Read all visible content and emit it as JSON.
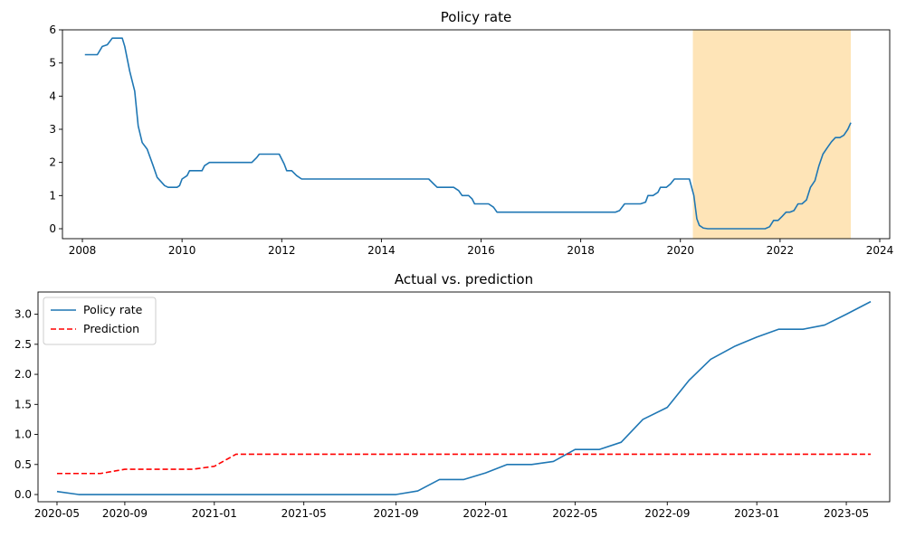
{
  "chart_data": [
    {
      "type": "line",
      "title": "Policy rate",
      "xlabel": "",
      "ylabel": "",
      "x_ticks": [
        "2008",
        "2010",
        "2012",
        "2014",
        "2016",
        "2018",
        "2020",
        "2022",
        "2024"
      ],
      "y_ticks": [
        "0",
        "1",
        "2",
        "3",
        "4",
        "5",
        "6"
      ],
      "xlim": [
        2007.6,
        2024.2
      ],
      "ylim": [
        -0.3,
        6.0
      ],
      "grid": false,
      "shaded_region": {
        "start": 2020.25,
        "end": 2023.42,
        "color": "#fdd48a",
        "opacity": 0.62
      },
      "series": [
        {
          "name": "",
          "color": "#1f77b4",
          "style": "solid",
          "points": [
            [
              2008.05,
              5.25
            ],
            [
              2008.3,
              5.25
            ],
            [
              2008.4,
              5.5
            ],
            [
              2008.5,
              5.55
            ],
            [
              2008.6,
              5.75
            ],
            [
              2008.8,
              5.75
            ],
            [
              2008.85,
              5.5
            ],
            [
              2008.95,
              4.75
            ],
            [
              2009.05,
              4.15
            ],
            [
              2009.12,
              3.1
            ],
            [
              2009.2,
              2.6
            ],
            [
              2009.3,
              2.4
            ],
            [
              2009.42,
              1.9
            ],
            [
              2009.5,
              1.55
            ],
            [
              2009.65,
              1.3
            ],
            [
              2009.72,
              1.25
            ],
            [
              2009.9,
              1.25
            ],
            [
              2009.95,
              1.3
            ],
            [
              2010.0,
              1.5
            ],
            [
              2010.1,
              1.6
            ],
            [
              2010.15,
              1.75
            ],
            [
              2010.4,
              1.75
            ],
            [
              2010.45,
              1.9
            ],
            [
              2010.55,
              2.0
            ],
            [
              2011.4,
              2.0
            ],
            [
              2011.5,
              2.15
            ],
            [
              2011.55,
              2.25
            ],
            [
              2011.95,
              2.25
            ],
            [
              2012.05,
              1.95
            ],
            [
              2012.1,
              1.75
            ],
            [
              2012.2,
              1.75
            ],
            [
              2012.3,
              1.6
            ],
            [
              2012.4,
              1.5
            ],
            [
              2014.95,
              1.5
            ],
            [
              2015.05,
              1.35
            ],
            [
              2015.12,
              1.25
            ],
            [
              2015.45,
              1.25
            ],
            [
              2015.55,
              1.15
            ],
            [
              2015.62,
              1.0
            ],
            [
              2015.75,
              1.0
            ],
            [
              2015.82,
              0.9
            ],
            [
              2015.87,
              0.75
            ],
            [
              2016.15,
              0.75
            ],
            [
              2016.25,
              0.65
            ],
            [
              2016.32,
              0.5
            ],
            [
              2018.7,
              0.5
            ],
            [
              2018.78,
              0.55
            ],
            [
              2018.88,
              0.75
            ],
            [
              2019.2,
              0.75
            ],
            [
              2019.3,
              0.8
            ],
            [
              2019.35,
              1.0
            ],
            [
              2019.45,
              1.0
            ],
            [
              2019.55,
              1.1
            ],
            [
              2019.6,
              1.25
            ],
            [
              2019.72,
              1.25
            ],
            [
              2019.8,
              1.35
            ],
            [
              2019.88,
              1.5
            ],
            [
              2020.18,
              1.5
            ],
            [
              2020.27,
              1.0
            ],
            [
              2020.33,
              0.3
            ],
            [
              2020.38,
              0.1
            ],
            [
              2020.46,
              0.02
            ],
            [
              2020.55,
              0.0
            ],
            [
              2021.7,
              0.0
            ],
            [
              2021.79,
              0.06
            ],
            [
              2021.87,
              0.25
            ],
            [
              2021.96,
              0.25
            ],
            [
              2022.04,
              0.37
            ],
            [
              2022.12,
              0.5
            ],
            [
              2022.2,
              0.5
            ],
            [
              2022.28,
              0.55
            ],
            [
              2022.36,
              0.75
            ],
            [
              2022.44,
              0.75
            ],
            [
              2022.53,
              0.87
            ],
            [
              2022.61,
              1.25
            ],
            [
              2022.7,
              1.45
            ],
            [
              2022.78,
              1.9
            ],
            [
              2022.86,
              2.25
            ],
            [
              2022.95,
              2.45
            ],
            [
              2023.03,
              2.62
            ],
            [
              2023.11,
              2.75
            ],
            [
              2023.2,
              2.75
            ],
            [
              2023.28,
              2.82
            ],
            [
              2023.36,
              3.0
            ],
            [
              2023.42,
              3.2
            ]
          ]
        }
      ]
    },
    {
      "type": "line",
      "title": "Actual vs. prediction",
      "xlabel": "",
      "ylabel": "",
      "x_tick_values": [
        2020.42,
        2020.67,
        2021.0,
        2021.33,
        2021.67,
        2022.0,
        2022.33,
        2022.67,
        2023.0,
        2023.33
      ],
      "x_ticks": [
        "2020-05",
        "2020-09",
        "2021-01",
        "2021-05",
        "2021-09",
        "2022-01",
        "2022-05",
        "2022-09",
        "2023-01",
        "2023-05"
      ],
      "y_ticks": [
        "0.0",
        "0.5",
        "1.0",
        "1.5",
        "2.0",
        "2.5",
        "3.0"
      ],
      "xlim": [
        2020.35,
        2023.49
      ],
      "ylim": [
        -0.12,
        3.37
      ],
      "grid": false,
      "legend_position": "top-left",
      "series": [
        {
          "name": "Policy rate",
          "color": "#1f77b4",
          "style": "solid",
          "points": [
            [
              2020.42,
              0.05
            ],
            [
              2020.5,
              0.0
            ],
            [
              2020.58,
              0.0
            ],
            [
              2020.67,
              0.0
            ],
            [
              2020.75,
              0.0
            ],
            [
              2020.83,
              0.0
            ],
            [
              2020.92,
              0.0
            ],
            [
              2021.0,
              0.0
            ],
            [
              2021.08,
              0.0
            ],
            [
              2021.17,
              0.0
            ],
            [
              2021.25,
              0.0
            ],
            [
              2021.33,
              0.0
            ],
            [
              2021.42,
              0.0
            ],
            [
              2021.5,
              0.0
            ],
            [
              2021.58,
              0.0
            ],
            [
              2021.67,
              0.0
            ],
            [
              2021.75,
              0.06
            ],
            [
              2021.83,
              0.25
            ],
            [
              2021.92,
              0.25
            ],
            [
              2022.0,
              0.36
            ],
            [
              2022.08,
              0.5
            ],
            [
              2022.17,
              0.5
            ],
            [
              2022.25,
              0.55
            ],
            [
              2022.33,
              0.75
            ],
            [
              2022.42,
              0.75
            ],
            [
              2022.5,
              0.87
            ],
            [
              2022.58,
              1.25
            ],
            [
              2022.67,
              1.45
            ],
            [
              2022.75,
              1.9
            ],
            [
              2022.83,
              2.25
            ],
            [
              2022.92,
              2.47
            ],
            [
              2023.0,
              2.62
            ],
            [
              2023.08,
              2.75
            ],
            [
              2023.17,
              2.75
            ],
            [
              2023.25,
              2.82
            ],
            [
              2023.33,
              3.0
            ],
            [
              2023.42,
              3.21
            ]
          ]
        },
        {
          "name": "Prediction",
          "color": "#ff0000",
          "style": "dashed",
          "points": [
            [
              2020.42,
              0.35
            ],
            [
              2020.5,
              0.35
            ],
            [
              2020.58,
              0.35
            ],
            [
              2020.67,
              0.42
            ],
            [
              2020.75,
              0.42
            ],
            [
              2020.83,
              0.42
            ],
            [
              2020.92,
              0.42
            ],
            [
              2021.0,
              0.47
            ],
            [
              2021.08,
              0.67
            ],
            [
              2021.17,
              0.67
            ],
            [
              2021.25,
              0.67
            ],
            [
              2021.33,
              0.67
            ],
            [
              2021.42,
              0.67
            ],
            [
              2021.5,
              0.67
            ],
            [
              2021.58,
              0.67
            ],
            [
              2021.67,
              0.67
            ],
            [
              2021.75,
              0.67
            ],
            [
              2021.83,
              0.67
            ],
            [
              2021.92,
              0.67
            ],
            [
              2022.0,
              0.67
            ],
            [
              2022.08,
              0.67
            ],
            [
              2022.17,
              0.67
            ],
            [
              2022.25,
              0.67
            ],
            [
              2022.33,
              0.67
            ],
            [
              2022.42,
              0.67
            ],
            [
              2022.5,
              0.67
            ],
            [
              2022.58,
              0.67
            ],
            [
              2022.67,
              0.67
            ],
            [
              2022.75,
              0.67
            ],
            [
              2022.83,
              0.67
            ],
            [
              2022.92,
              0.67
            ],
            [
              2023.0,
              0.67
            ],
            [
              2023.08,
              0.67
            ],
            [
              2023.17,
              0.67
            ],
            [
              2023.25,
              0.67
            ],
            [
              2023.33,
              0.67
            ],
            [
              2023.42,
              0.67
            ]
          ]
        }
      ]
    }
  ]
}
